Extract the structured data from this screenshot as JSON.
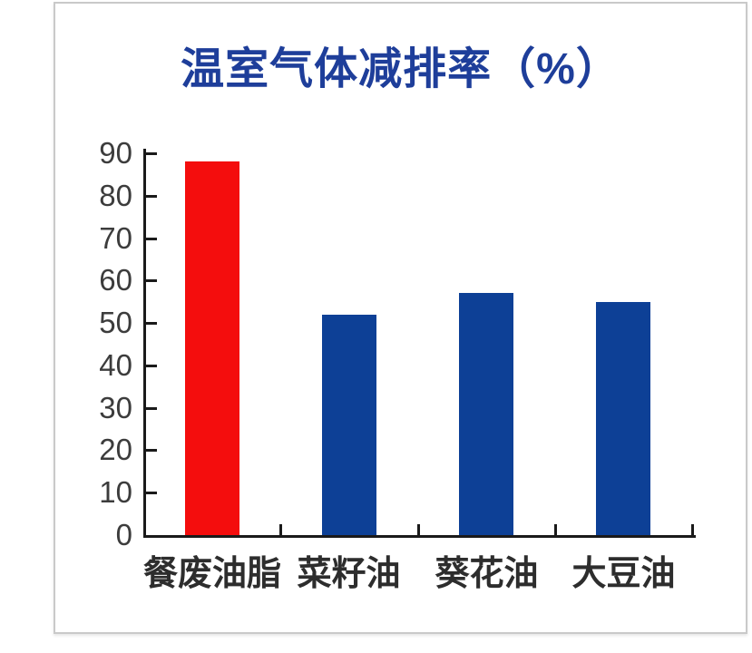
{
  "panel": {
    "background": "#ffffff",
    "border_color": "#c9c9c9"
  },
  "chart_data": {
    "type": "bar",
    "title": "温室气体减排率（%）",
    "title_color": "#1e3e9a",
    "categories": [
      "餐废油脂",
      "菜籽油",
      "葵花油",
      "大豆油"
    ],
    "values": [
      88,
      52,
      57,
      55
    ],
    "bar_colors": [
      "#f40d0d",
      "#0d4096",
      "#0d4096",
      "#0d4096"
    ],
    "highlight_color": "#f40d0d",
    "series_color": "#0d4096",
    "xlabel": "",
    "ylabel": "",
    "ylim": [
      0,
      90
    ],
    "yticks": [
      0,
      10,
      20,
      30,
      40,
      50,
      60,
      70,
      80,
      90
    ],
    "grid": false,
    "legend": false,
    "axis_color": "#1a1a1a",
    "tick_label_color": "#3c3c3c",
    "category_label_color": "#2d2d2d"
  }
}
